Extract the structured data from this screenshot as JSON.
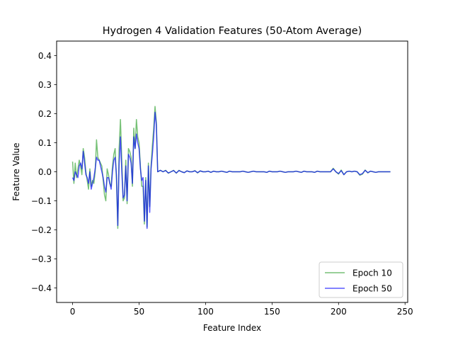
{
  "chart_data": {
    "type": "line",
    "title": "Hydrogen 4 Validation Features (50-Atom Average)",
    "xlabel": "Feature Index",
    "ylabel": "Feature Value",
    "xlim": [
      -12,
      252
    ],
    "ylim": [
      -0.45,
      0.45
    ],
    "xticks": [
      0,
      50,
      100,
      150,
      200,
      250
    ],
    "yticks": [
      -0.4,
      -0.3,
      -0.2,
      -0.1,
      0.0,
      0.1,
      0.2,
      0.3,
      0.4
    ],
    "xtick_labels": [
      "0",
      "50",
      "100",
      "150",
      "200",
      "250"
    ],
    "ytick_labels": [
      "−0.4",
      "−0.3",
      "−0.2",
      "−0.1",
      "0.0",
      "0.1",
      "0.2",
      "0.3",
      "0.4"
    ],
    "grid": false,
    "legend_position": "lower-right",
    "series": [
      {
        "name": "Epoch 10",
        "color": "#2ca02c",
        "x": [
          0,
          1,
          2,
          3,
          4,
          5,
          6,
          7,
          8,
          9,
          10,
          11,
          12,
          13,
          14,
          15,
          16,
          17,
          18,
          19,
          20,
          21,
          22,
          23,
          24,
          25,
          26,
          27,
          28,
          29,
          30,
          31,
          32,
          33,
          34,
          35,
          36,
          37,
          38,
          39,
          40,
          41,
          42,
          43,
          44,
          45,
          46,
          47,
          48,
          49,
          50,
          51,
          52,
          53,
          54,
          55,
          56,
          57,
          58,
          59,
          60,
          61,
          62,
          63,
          64,
          66,
          68,
          70,
          72,
          74,
          76,
          78,
          80,
          82,
          84,
          86,
          88,
          90,
          92,
          94,
          96,
          98,
          100,
          102,
          104,
          106,
          108,
          110,
          112,
          114,
          116,
          118,
          120,
          122,
          124,
          126,
          128,
          130,
          132,
          134,
          136,
          138,
          140,
          142,
          144,
          146,
          148,
          150,
          152,
          154,
          156,
          158,
          160,
          162,
          164,
          166,
          168,
          170,
          172,
          174,
          176,
          178,
          180,
          182,
          184,
          186,
          188,
          190,
          192,
          194,
          196,
          198,
          200,
          202,
          204,
          206,
          208,
          210,
          212,
          214,
          216,
          218,
          220,
          222,
          224,
          226,
          228,
          230,
          232,
          234,
          236,
          239
        ],
        "values": [
          0.035,
          -0.04,
          0.03,
          -0.02,
          0.01,
          0.04,
          0.02,
          -0.01,
          0.08,
          0.05,
          0.0,
          -0.03,
          -0.06,
          0.01,
          -0.05,
          -0.03,
          -0.04,
          0.0,
          0.11,
          0.05,
          0.04,
          0.03,
          0.02,
          -0.03,
          -0.08,
          -0.1,
          0.01,
          -0.01,
          -0.04,
          -0.05,
          0.02,
          0.06,
          0.08,
          -0.03,
          -0.195,
          0.08,
          0.18,
          0.04,
          -0.1,
          -0.09,
          0.04,
          -0.11,
          0.08,
          0.07,
          0.05,
          -0.05,
          0.15,
          0.08,
          0.18,
          0.12,
          0.1,
          0.02,
          -0.05,
          -0.05,
          -0.18,
          -0.02,
          -0.19,
          0.03,
          -0.12,
          0.02,
          0.09,
          0.15,
          0.225,
          0.17,
          0.0,
          0.005,
          0.0,
          0.005,
          -0.005,
          0.0,
          0.005,
          -0.005,
          0.005,
          0.0,
          -0.003,
          0.003,
          0.0,
          0.0,
          0.004,
          -0.004,
          0.003,
          0.0,
          0.0,
          0.002,
          -0.002,
          0.002,
          0.0,
          0.0,
          0.002,
          0.0,
          -0.002,
          0.002,
          0.0,
          0.0,
          0.0,
          0.0,
          0.002,
          0.0,
          -0.002,
          0.0,
          0.002,
          0.0,
          0.0,
          0.0,
          0.0,
          -0.002,
          0.002,
          0.0,
          0.0,
          0.0,
          0.002,
          0.0,
          -0.002,
          0.0,
          0.0,
          0.0,
          0.002,
          0.0,
          -0.002,
          0.002,
          0.0,
          0.0,
          0.0,
          -0.002,
          0.002,
          0.0,
          0.0,
          0.0,
          0.0,
          0.0,
          0.012,
          0.0,
          -0.008,
          0.006,
          -0.01,
          0.0,
          0.002,
          0.0,
          0.002,
          0.0,
          -0.012,
          -0.008,
          0.006,
          -0.004,
          0.002,
          0.0,
          -0.002,
          0.0,
          0.0,
          0.0,
          0.0,
          0.0
        ]
      },
      {
        "name": "Epoch 50",
        "color": "#0000ff",
        "x": [
          0,
          1,
          2,
          3,
          4,
          5,
          6,
          7,
          8,
          9,
          10,
          11,
          12,
          13,
          14,
          15,
          16,
          17,
          18,
          19,
          20,
          21,
          22,
          23,
          24,
          25,
          26,
          27,
          28,
          29,
          30,
          31,
          32,
          33,
          34,
          35,
          36,
          37,
          38,
          39,
          40,
          41,
          42,
          43,
          44,
          45,
          46,
          47,
          48,
          49,
          50,
          51,
          52,
          53,
          54,
          55,
          56,
          57,
          58,
          59,
          60,
          61,
          62,
          63,
          64,
          66,
          68,
          70,
          72,
          74,
          76,
          78,
          80,
          82,
          84,
          86,
          88,
          90,
          92,
          94,
          96,
          98,
          100,
          102,
          104,
          106,
          108,
          110,
          112,
          114,
          116,
          118,
          120,
          122,
          124,
          126,
          128,
          130,
          132,
          134,
          136,
          138,
          140,
          142,
          144,
          146,
          148,
          150,
          152,
          154,
          156,
          158,
          160,
          162,
          164,
          166,
          168,
          170,
          172,
          174,
          176,
          178,
          180,
          182,
          184,
          186,
          188,
          190,
          192,
          194,
          196,
          198,
          200,
          202,
          204,
          206,
          208,
          210,
          212,
          214,
          216,
          218,
          220,
          222,
          224,
          226,
          228,
          230,
          232,
          234,
          236,
          239
        ],
        "values": [
          -0.02,
          -0.03,
          0.0,
          -0.01,
          -0.02,
          0.02,
          0.03,
          0.01,
          0.07,
          0.03,
          -0.01,
          -0.02,
          -0.04,
          0.0,
          -0.06,
          -0.04,
          -0.02,
          0.01,
          0.05,
          0.04,
          0.04,
          0.02,
          0.0,
          -0.02,
          -0.05,
          -0.07,
          -0.02,
          -0.02,
          -0.04,
          -0.06,
          0.0,
          0.04,
          0.05,
          -0.01,
          -0.185,
          0.03,
          0.12,
          0.0,
          -0.09,
          -0.08,
          0.02,
          -0.1,
          0.06,
          0.05,
          0.03,
          -0.04,
          0.12,
          0.08,
          0.13,
          0.1,
          0.08,
          0.01,
          -0.03,
          -0.02,
          -0.17,
          -0.03,
          -0.195,
          0.02,
          -0.14,
          0.01,
          0.06,
          0.12,
          0.205,
          0.16,
          0.0,
          0.005,
          0.0,
          0.004,
          -0.004,
          0.0,
          0.004,
          -0.004,
          0.004,
          0.0,
          -0.003,
          0.003,
          0.0,
          0.0,
          0.003,
          -0.003,
          0.003,
          0.0,
          0.0,
          0.002,
          -0.002,
          0.002,
          0.0,
          0.0,
          0.002,
          0.0,
          -0.002,
          0.002,
          0.0,
          0.0,
          0.0,
          0.0,
          0.002,
          0.0,
          -0.002,
          0.0,
          0.002,
          0.0,
          0.0,
          0.0,
          0.0,
          -0.002,
          0.002,
          0.0,
          0.0,
          0.0,
          0.002,
          0.0,
          -0.002,
          0.0,
          0.0,
          0.0,
          0.002,
          0.0,
          -0.002,
          0.002,
          0.0,
          0.0,
          0.0,
          -0.002,
          0.002,
          0.0,
          0.0,
          0.0,
          0.0,
          0.0,
          0.01,
          0.0,
          -0.006,
          0.004,
          -0.01,
          0.0,
          0.002,
          0.0,
          0.002,
          0.0,
          -0.01,
          -0.006,
          0.005,
          -0.003,
          0.002,
          0.0,
          -0.002,
          0.0,
          0.0,
          0.0,
          0.0,
          0.0
        ]
      }
    ]
  }
}
